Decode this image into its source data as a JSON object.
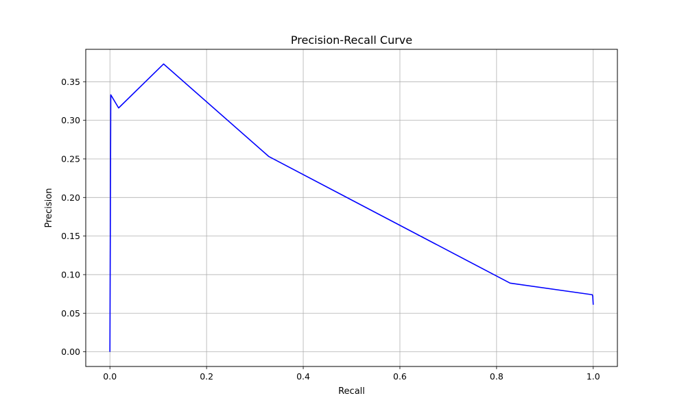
{
  "chart_data": {
    "type": "line",
    "title": "Precision-Recall Curve",
    "xlabel": "Recall",
    "ylabel": "Precision",
    "xlim": [
      -0.05,
      1.05
    ],
    "ylim": [
      -0.019,
      0.392
    ],
    "xticks": [
      0.0,
      0.2,
      0.4,
      0.6,
      0.8,
      1.0
    ],
    "xtick_labels": [
      "0.0",
      "0.2",
      "0.4",
      "0.6",
      "0.8",
      "1.0"
    ],
    "yticks": [
      0.0,
      0.05,
      0.1,
      0.15,
      0.2,
      0.25,
      0.3,
      0.35
    ],
    "ytick_labels": [
      "0.00",
      "0.05",
      "0.10",
      "0.15",
      "0.20",
      "0.25",
      "0.30",
      "0.35"
    ],
    "grid": true,
    "series": [
      {
        "color": "#0000ff",
        "x": [
          0.0,
          0.0,
          0.0018,
          0.018,
          0.111,
          0.329,
          0.828,
          0.998,
          0.999,
          1.0
        ],
        "y": [
          0.0,
          0.0,
          0.333,
          0.316,
          0.373,
          0.253,
          0.089,
          0.074,
          0.072,
          0.061
        ]
      }
    ]
  }
}
